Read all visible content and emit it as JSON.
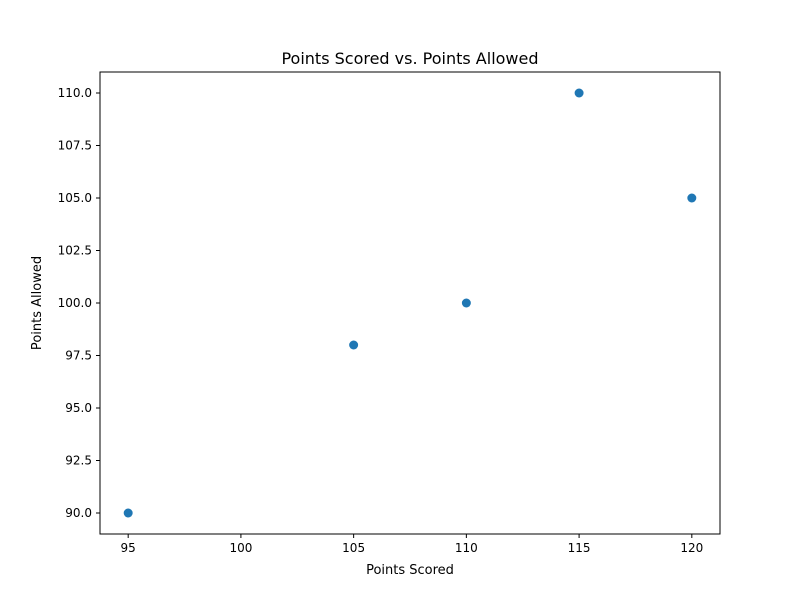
{
  "chart_data": {
    "type": "scatter",
    "title": "Points Scored vs. Points Allowed",
    "xlabel": "Points Scored",
    "ylabel": "Points Allowed",
    "xlim": [
      93.75,
      121.25
    ],
    "ylim": [
      89.0,
      111.0
    ],
    "xticks": [
      95,
      100,
      105,
      110,
      115,
      120
    ],
    "xtick_labels": [
      "95",
      "100",
      "105",
      "110",
      "115",
      "120"
    ],
    "yticks": [
      90.0,
      92.5,
      95.0,
      97.5,
      100.0,
      102.5,
      105.0,
      107.5,
      110.0
    ],
    "ytick_labels": [
      "90.0",
      "92.5",
      "95.0",
      "97.5",
      "100.0",
      "102.5",
      "105.0",
      "107.5",
      "110.0"
    ],
    "grid": false,
    "legend": "none",
    "points": [
      {
        "x": 95,
        "y": 90
      },
      {
        "x": 105,
        "y": 98
      },
      {
        "x": 110,
        "y": 100
      },
      {
        "x": 115,
        "y": 110
      },
      {
        "x": 120,
        "y": 105
      }
    ],
    "marker_color": "#1f77b4"
  }
}
